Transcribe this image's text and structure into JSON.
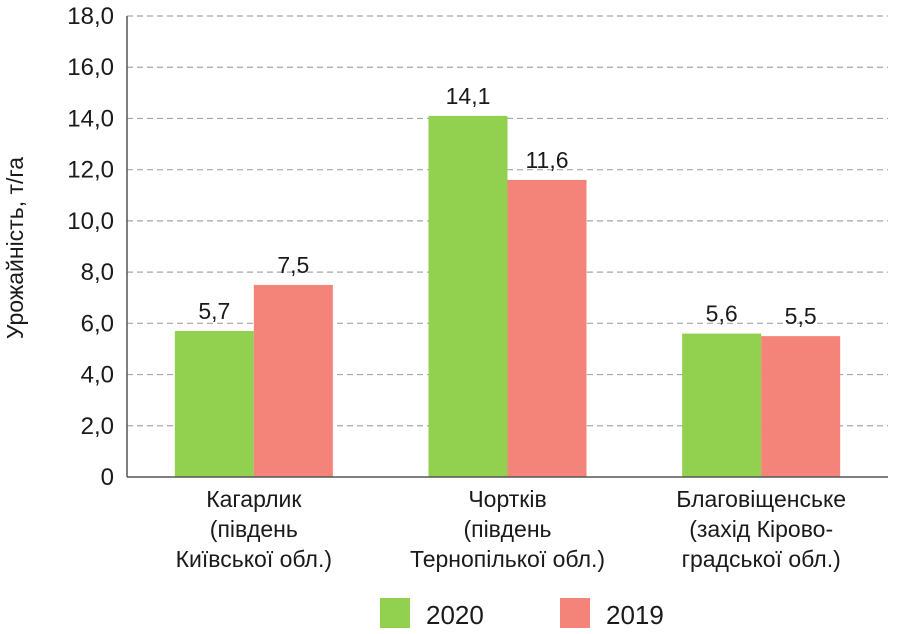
{
  "chart_data": {
    "type": "bar",
    "ylabel": "Урожайність, т/га",
    "ylim": [
      0,
      18
    ],
    "yticks": [
      "0",
      "2,0",
      "4,0",
      "6,0",
      "8,0",
      "10,0",
      "12,0",
      "14,0",
      "16,0",
      "18,0"
    ],
    "grid": true,
    "legend_position": "bottom",
    "categories": [
      [
        "Кагарлик",
        "(південь",
        "Київської обл.)"
      ],
      [
        "Чортків",
        "(південь",
        "Тернопілької обл.)"
      ],
      [
        "Благовіщенське",
        "(захід Кірово-",
        "градської обл.)"
      ]
    ],
    "series": [
      {
        "name": "2020",
        "color": "#92d050",
        "values": [
          5.7,
          14.1,
          5.6
        ],
        "labels": [
          "5,7",
          "14,1",
          "5,6"
        ]
      },
      {
        "name": "2019",
        "color": "#f4837a",
        "values": [
          7.5,
          11.6,
          5.5
        ],
        "labels": [
          "7,5",
          "11,6",
          "5,5"
        ]
      }
    ]
  }
}
